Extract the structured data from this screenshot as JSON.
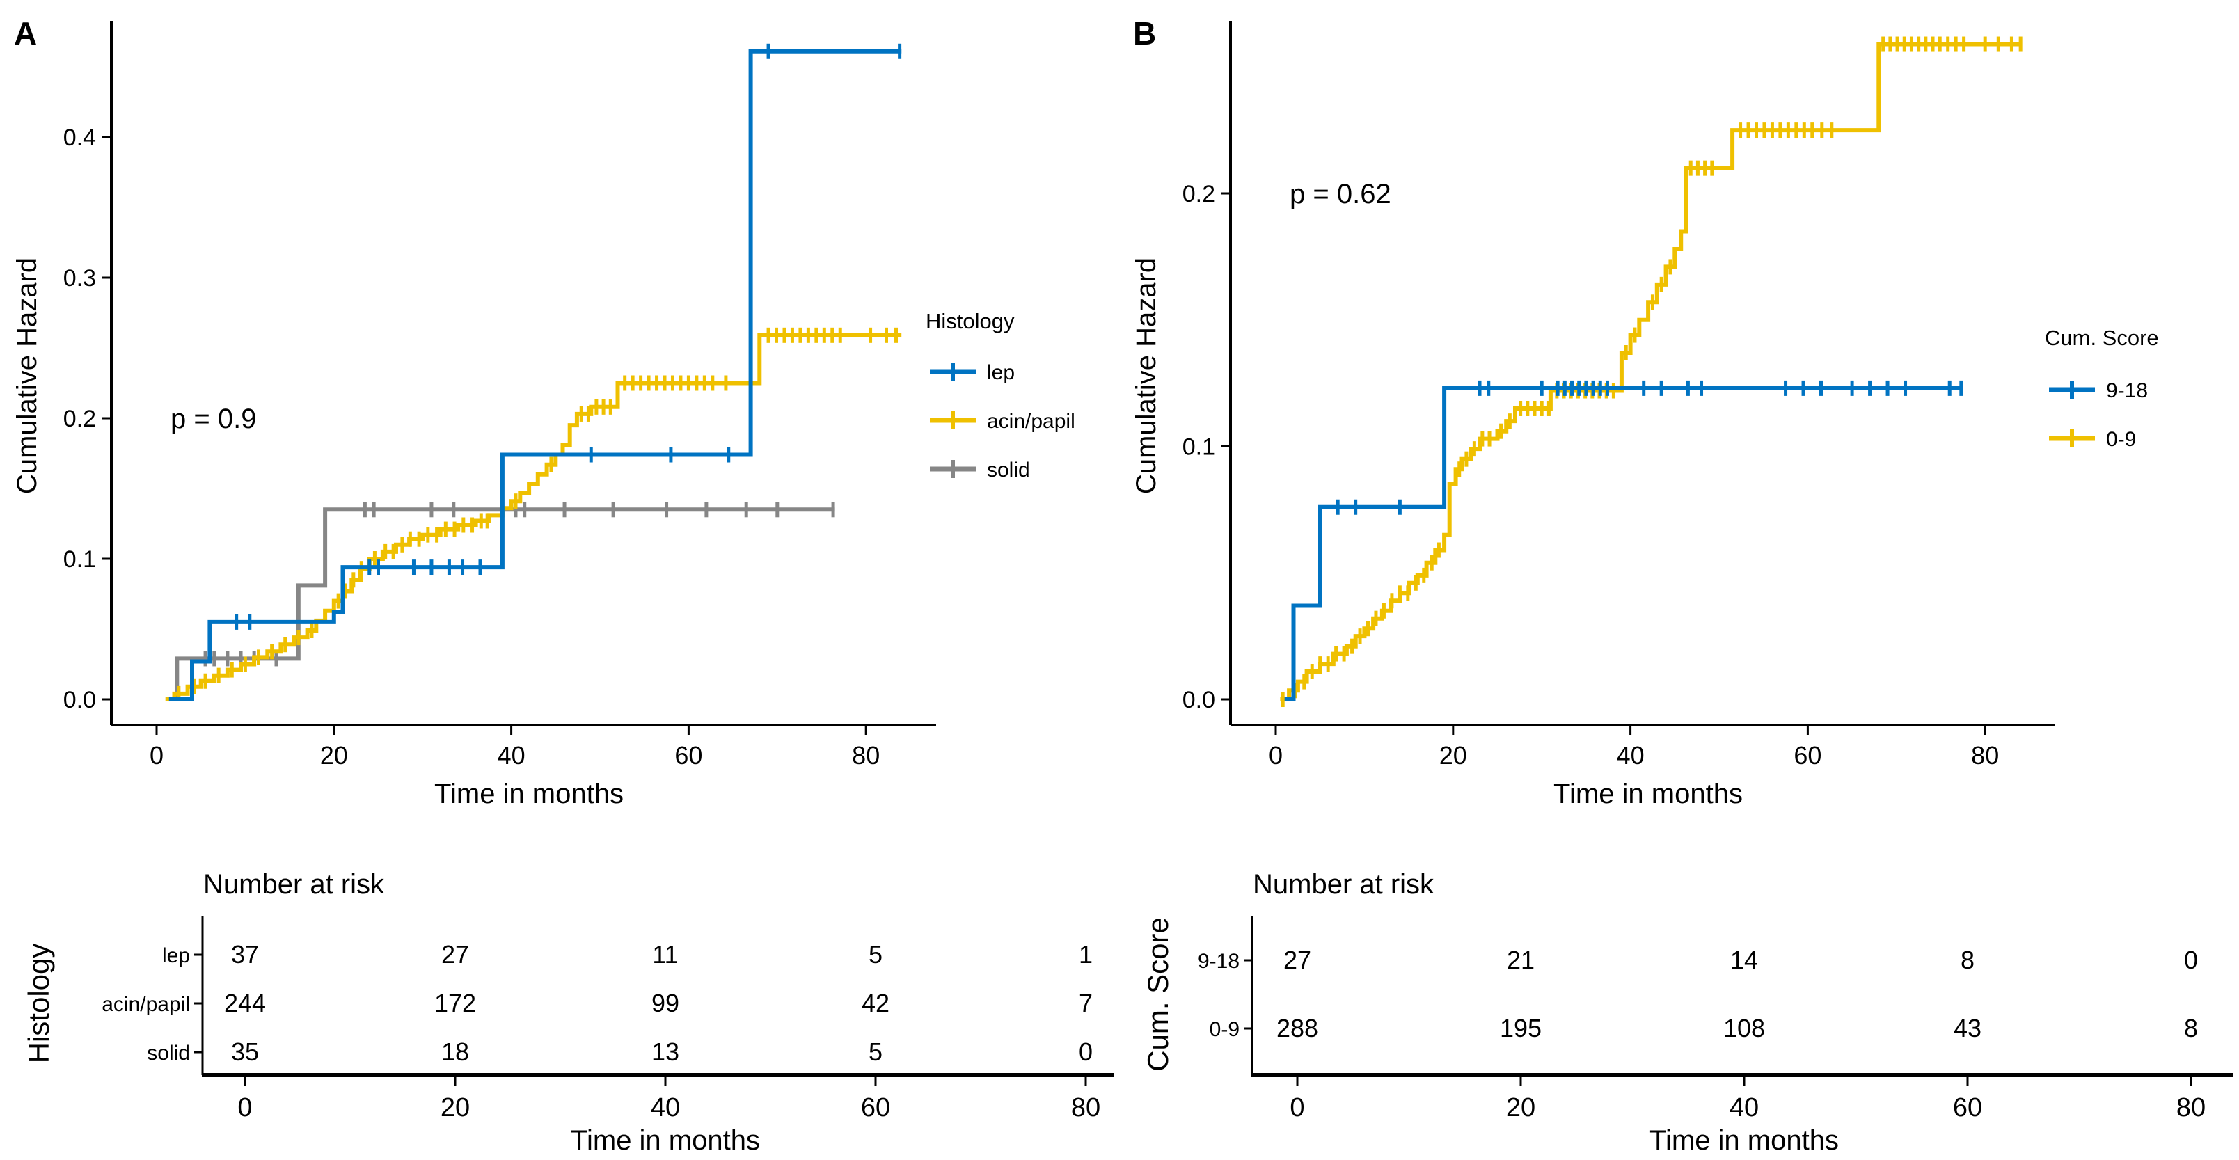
{
  "figure_title": "",
  "colors": {
    "blue": "#0073C2",
    "yellow": "#EFC000",
    "gray": "#868686",
    "axis": "#000000"
  },
  "shared": {
    "ylabel": "Cumulative Hazard",
    "xlabel": "Time in months",
    "risk_table_title": "Number at risk",
    "xticks": [
      0,
      20,
      40,
      60,
      80
    ]
  },
  "chart_data": [
    {
      "type": "line",
      "subtype": "step-cumulative-hazard",
      "panel_label": "A",
      "pvalue": "p = 0.9",
      "xlabel": "Time in months",
      "ylabel": "Cumulative Hazard",
      "xlim": [
        0,
        84
      ],
      "ylim": [
        0,
        0.47
      ],
      "xticks": [
        0,
        20,
        40,
        60,
        80
      ],
      "yticks": [
        0.0,
        0.1,
        0.2,
        0.3,
        0.4
      ],
      "ytick_labels": [
        "0.0",
        "0.1",
        "0.2",
        "0.3",
        "0.4"
      ],
      "grid": false,
      "legend_position": "right",
      "legend_title": "Histology",
      "series": [
        {
          "name": "lep",
          "color_key": "blue",
          "steps": [
            [
              1.4,
              0
            ],
            [
              4,
              0.027
            ],
            [
              6,
              0.055
            ],
            [
              20,
              0.062
            ],
            [
              21,
              0.094
            ],
            [
              39,
              0.174
            ],
            [
              67,
              0.461
            ]
          ],
          "end": 84,
          "censors": [
            9,
            10.5,
            24,
            25,
            29,
            31,
            33,
            34.5,
            36.5,
            49,
            58,
            64.5,
            69,
            83.8
          ]
        },
        {
          "name": "acin/papil",
          "color_key": "yellow",
          "steps": [
            [
              1,
              0
            ],
            [
              2,
              0.004
            ],
            [
              3.5,
              0.009
            ],
            [
              5,
              0.013
            ],
            [
              6.5,
              0.017
            ],
            [
              8,
              0.021
            ],
            [
              9.5,
              0.025
            ],
            [
              11,
              0.03
            ],
            [
              12.5,
              0.034
            ],
            [
              14,
              0.039
            ],
            [
              15.5,
              0.044
            ],
            [
              17,
              0.049
            ],
            [
              18,
              0.056
            ],
            [
              19,
              0.063
            ],
            [
              20,
              0.07
            ],
            [
              21,
              0.077
            ],
            [
              22,
              0.085
            ],
            [
              23,
              0.093
            ],
            [
              24,
              0.1
            ],
            [
              25.5,
              0.105
            ],
            [
              27,
              0.11
            ],
            [
              28.5,
              0.114
            ],
            [
              30,
              0.117
            ],
            [
              32,
              0.121
            ],
            [
              34,
              0.124
            ],
            [
              36,
              0.127
            ],
            [
              37.5,
              0.131
            ],
            [
              39,
              0.136
            ],
            [
              40,
              0.141
            ],
            [
              41,
              0.147
            ],
            [
              42,
              0.153
            ],
            [
              43,
              0.16
            ],
            [
              44,
              0.167
            ],
            [
              45,
              0.174
            ],
            [
              45.8,
              0.181
            ],
            [
              46.6,
              0.195
            ],
            [
              47.4,
              0.203
            ],
            [
              49,
              0.208
            ],
            [
              52,
              0.225
            ],
            [
              68,
              0.259
            ]
          ],
          "end": 84,
          "censors": [
            2.5,
            4.2,
            5.5,
            7,
            8.5,
            10,
            11.5,
            13,
            14.5,
            16,
            17.5,
            20.5,
            21.3,
            22.2,
            23.1,
            24.6,
            25.8,
            26.7,
            27.7,
            28.6,
            29.6,
            30.6,
            31.6,
            32.6,
            33.6,
            34.6,
            35.6,
            36.6,
            37.3,
            40.5,
            44.5,
            47.9,
            48.7,
            49.6,
            50.4,
            51.2,
            52.8,
            53.7,
            54.6,
            55.5,
            56.4,
            57.3,
            58.2,
            59.1,
            60,
            60.9,
            61.8,
            62.7,
            64.2,
            69,
            69.9,
            70.8,
            71.7,
            72.6,
            73.5,
            74.4,
            75.3,
            76.2,
            77.1,
            80.5,
            82.3,
            83.4
          ]
        },
        {
          "name": "solid",
          "color_key": "gray",
          "steps": [
            [
              1.6,
              0
            ],
            [
              2.3,
              0.029
            ],
            [
              16,
              0.081
            ],
            [
              19,
              0.135
            ]
          ],
          "end": 76.5,
          "censors": [
            5.5,
            6.5,
            8,
            9.5,
            11,
            13.5,
            23.5,
            24.5,
            31,
            33.5,
            40.5,
            41.5,
            46,
            51.5,
            57.5,
            62,
            66.5,
            70,
            76.3
          ]
        }
      ],
      "risk_table": {
        "title": "Number at risk",
        "group_label": "Histology",
        "time_points": [
          0,
          20,
          40,
          60,
          80
        ],
        "rows": [
          {
            "label": "lep",
            "color_key": "blue",
            "values": [
              37,
              27,
              11,
              5,
              1
            ]
          },
          {
            "label": "acin/papil",
            "color_key": "yellow",
            "values": [
              244,
              172,
              99,
              42,
              7
            ]
          },
          {
            "label": "solid",
            "color_key": "gray",
            "values": [
              35,
              18,
              13,
              5,
              0
            ]
          }
        ]
      }
    },
    {
      "type": "line",
      "subtype": "step-cumulative-hazard",
      "panel_label": "B",
      "pvalue": "p = 0.62",
      "xlabel": "Time in months",
      "ylabel": "Cumulative Hazard",
      "xlim": [
        0,
        84
      ],
      "ylim": [
        0,
        0.26
      ],
      "xticks": [
        0,
        20,
        40,
        60,
        80
      ],
      "yticks": [
        0.0,
        0.1,
        0.2
      ],
      "ytick_labels": [
        "0.0",
        "0.1",
        "0.2"
      ],
      "grid": false,
      "legend_position": "right",
      "legend_title": "Cum. Score",
      "series": [
        {
          "name": "9-18",
          "color_key": "blue",
          "steps": [
            [
              1,
              0
            ],
            [
              2,
              0.037
            ],
            [
              5,
              0.076
            ],
            [
              19,
              0.123
            ]
          ],
          "end": 77.5,
          "censors": [
            7,
            9,
            14,
            23,
            24,
            30,
            31.8,
            32.6,
            33.4,
            34.2,
            35,
            35.8,
            36.6,
            37.4,
            41.5,
            43.5,
            46.5,
            48,
            57.5,
            59.5,
            61.5,
            65,
            67,
            69,
            71,
            76,
            77.3
          ]
        },
        {
          "name": "0-9",
          "color_key": "yellow",
          "steps": [
            [
              0.5,
              0
            ],
            [
              1.5,
              0.0035
            ],
            [
              2.5,
              0.007
            ],
            [
              3.5,
              0.011
            ],
            [
              5,
              0.014
            ],
            [
              6.5,
              0.018
            ],
            [
              8,
              0.021
            ],
            [
              9,
              0.025
            ],
            [
              10,
              0.028
            ],
            [
              11,
              0.032
            ],
            [
              12,
              0.035
            ],
            [
              13,
              0.039
            ],
            [
              14,
              0.042
            ],
            [
              15,
              0.046
            ],
            [
              16,
              0.049
            ],
            [
              17,
              0.054
            ],
            [
              18,
              0.059
            ],
            [
              19,
              0.065
            ],
            [
              19.6,
              0.085
            ],
            [
              20.3,
              0.091
            ],
            [
              21,
              0.095
            ],
            [
              22,
              0.099
            ],
            [
              23,
              0.103
            ],
            [
              25,
              0.106
            ],
            [
              26,
              0.11
            ],
            [
              27,
              0.115
            ],
            [
              31,
              0.122
            ],
            [
              39,
              0.137
            ],
            [
              40,
              0.144
            ],
            [
              41,
              0.15
            ],
            [
              42,
              0.157
            ],
            [
              43,
              0.164
            ],
            [
              44,
              0.171
            ],
            [
              45,
              0.178
            ],
            [
              45.7,
              0.185
            ],
            [
              46.3,
              0.21
            ],
            [
              51.5,
              0.225
            ],
            [
              68,
              0.259
            ]
          ],
          "end": 84,
          "censors": [
            0.8,
            2.2,
            3.2,
            4.1,
            5,
            5.9,
            6.8,
            7.7,
            8.6,
            9.5,
            10.4,
            11.3,
            12.2,
            13.1,
            14,
            14.9,
            15.8,
            16.7,
            17.6,
            18.4,
            20.7,
            21.5,
            22.4,
            23.3,
            24.1,
            25.4,
            26.4,
            27.6,
            28.4,
            29.2,
            30,
            30.8,
            31.7,
            32.5,
            33.3,
            34.1,
            34.9,
            35.7,
            36.5,
            37.3,
            38.1,
            39.5,
            40.5,
            42.5,
            43.5,
            44.5,
            46.8,
            47.6,
            48.4,
            49.2,
            52.4,
            53.3,
            54.2,
            55.1,
            56,
            56.9,
            57.8,
            58.7,
            59.6,
            60.5,
            61.6,
            62.7,
            68.5,
            69.3,
            70.1,
            70.9,
            71.7,
            72.5,
            73.3,
            74.1,
            74.9,
            75.8,
            76.7,
            77.6,
            80,
            81.5,
            83,
            84
          ]
        }
      ],
      "risk_table": {
        "title": "Number at risk",
        "group_label": "Cum. Score",
        "time_points": [
          0,
          20,
          40,
          60,
          80
        ],
        "rows": [
          {
            "label": "9-18",
            "color_key": "blue",
            "values": [
              27,
              21,
              14,
              8,
              0
            ]
          },
          {
            "label": "0-9",
            "color_key": "yellow",
            "values": [
              288,
              195,
              108,
              43,
              8
            ]
          }
        ]
      }
    }
  ]
}
